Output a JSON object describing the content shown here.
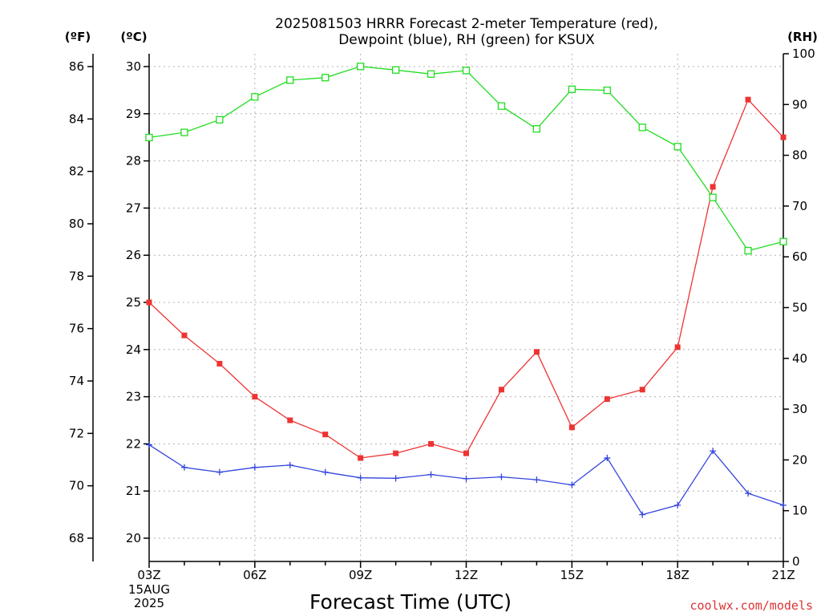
{
  "chart_data": {
    "type": "line",
    "title": [
      "2025081503 HRRR Forecast 2-meter Temperature (red),",
      "Dewpoint (blue), RH (green) for KSUX"
    ],
    "xlabel": "Forecast Time (UTC)",
    "credit": "coolwx.com/models",
    "left_axis_unit": "(ºF)",
    "celsius_axis_unit": "(ºC)",
    "right_axis_unit": "(RH)",
    "x": [
      "03Z",
      "04Z",
      "05Z",
      "06Z",
      "07Z",
      "08Z",
      "09Z",
      "10Z",
      "11Z",
      "12Z",
      "13Z",
      "14Z",
      "15Z",
      "16Z",
      "17Z",
      "18Z",
      "19Z",
      "20Z",
      "21Z"
    ],
    "x_tick_labels": [
      "03Z",
      "06Z",
      "09Z",
      "12Z",
      "15Z",
      "18Z",
      "21Z"
    ],
    "x_first_sublabels": [
      "15AUG",
      "2025"
    ],
    "fahrenheit_ticks": [
      68,
      70,
      72,
      74,
      76,
      78,
      80,
      82,
      84,
      86
    ],
    "celsius_ticks": [
      20,
      21,
      22,
      23,
      24,
      25,
      26,
      27,
      28,
      29,
      30
    ],
    "rh_ticks": [
      0,
      10,
      20,
      30,
      40,
      50,
      60,
      70,
      80,
      90,
      100
    ],
    "celsius_range": [
      19.5,
      30.5
    ],
    "rh_range": [
      0,
      100
    ],
    "grid": true,
    "series": [
      {
        "name": "Temperature",
        "color": "#ee3333",
        "axis": "celsius",
        "marker": "filled-square",
        "values": [
          25.0,
          24.3,
          23.7,
          23.0,
          22.5,
          22.2,
          21.7,
          21.8,
          22.0,
          21.8,
          23.15,
          23.95,
          22.35,
          22.95,
          23.15,
          24.05,
          27.45,
          29.3,
          28.5
        ]
      },
      {
        "name": "Dewpoint",
        "color": "#3344dd",
        "axis": "celsius",
        "marker": "plus",
        "values": [
          21.98,
          21.5,
          21.4,
          21.5,
          21.55,
          21.4,
          21.28,
          21.27,
          21.35,
          21.26,
          21.3,
          21.24,
          21.13,
          21.7,
          20.5,
          20.7,
          21.85,
          20.95,
          20.7
        ]
      },
      {
        "name": "RH",
        "color": "#22dd22",
        "axis": "rh",
        "marker": "open-square",
        "values": [
          83.5,
          84.5,
          87.0,
          91.5,
          94.8,
          95.3,
          97.5,
          96.8,
          96.0,
          96.7,
          89.7,
          85.2,
          93.0,
          92.8,
          85.5,
          81.7,
          71.7,
          61.2,
          63.0
        ]
      }
    ]
  }
}
